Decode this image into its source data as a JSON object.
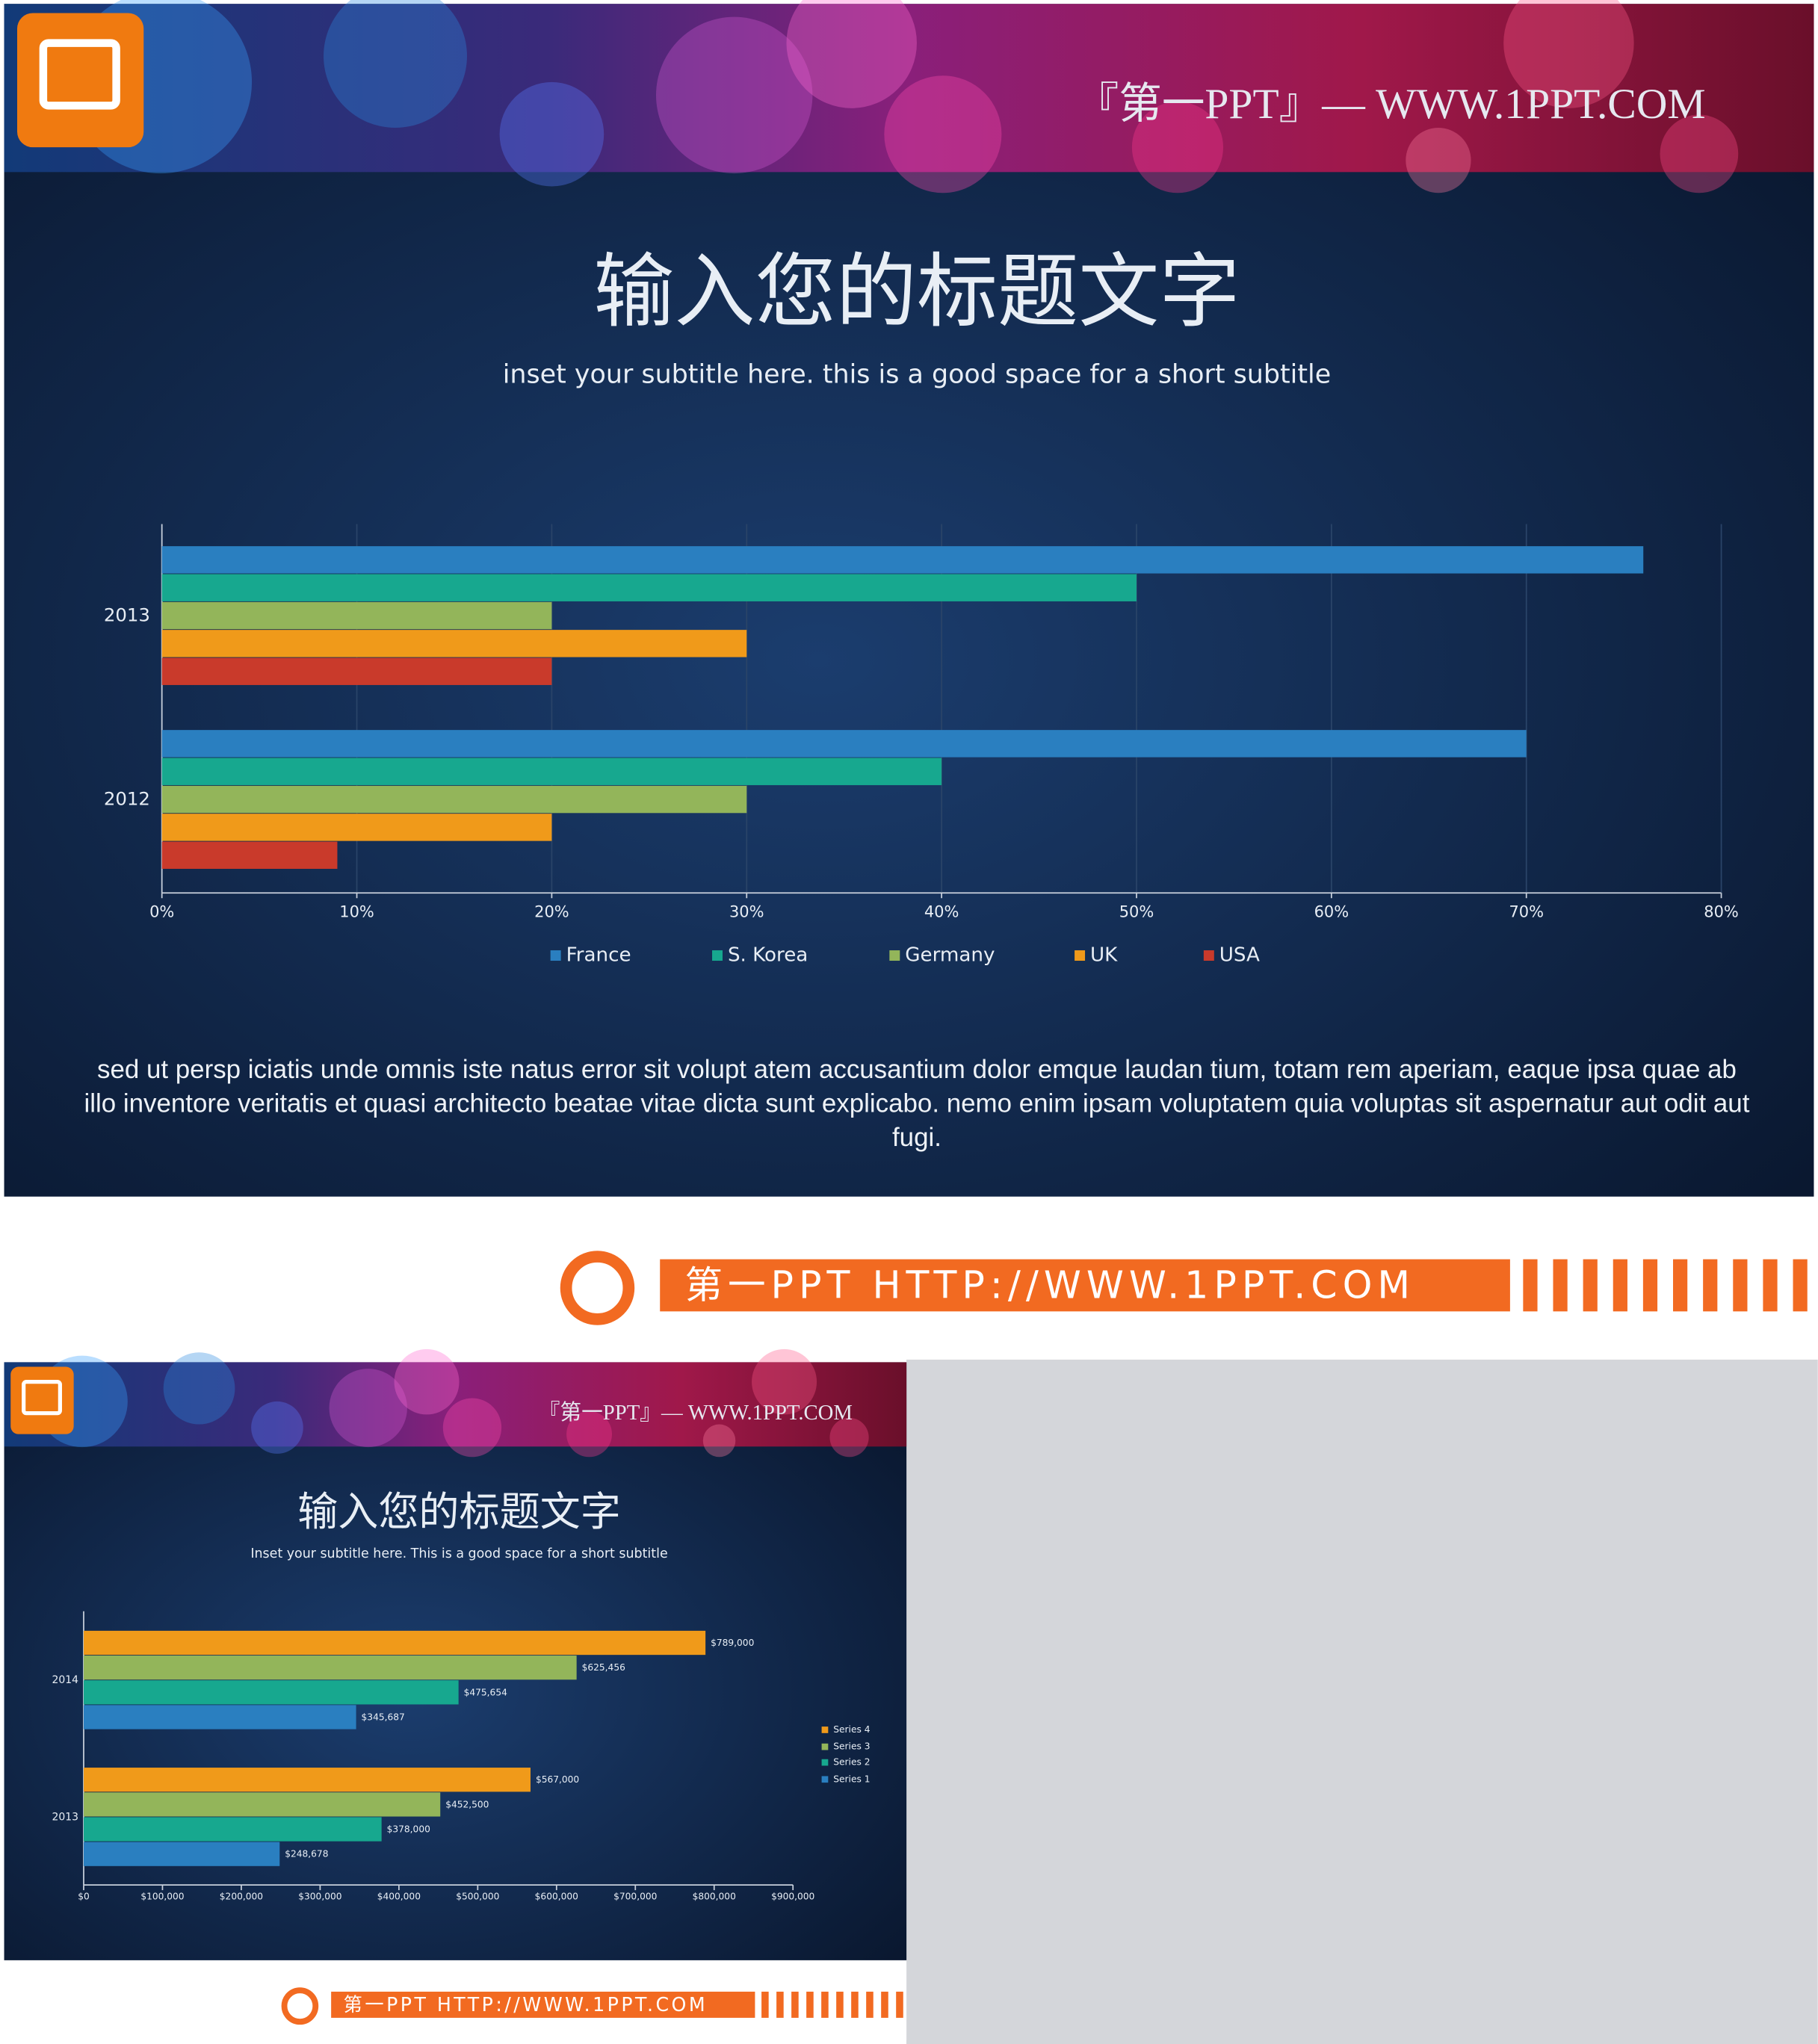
{
  "chart_data": [
    {
      "type": "bar",
      "orientation": "horizontal",
      "title": "输入您的标题文字",
      "subtitle": "inset your subtitle here. this is a good space for a short subtitle",
      "categories": [
        "2013",
        "2012"
      ],
      "series": [
        {
          "name": "France",
          "color": "#2a7fc0",
          "values": [
            76,
            70
          ]
        },
        {
          "name": "S. Korea",
          "color": "#17a88f",
          "values": [
            50,
            40
          ]
        },
        {
          "name": "Germany",
          "color": "#93b55a",
          "values": [
            20,
            30
          ]
        },
        {
          "name": "UK",
          "color": "#f09a1a",
          "values": [
            30,
            20
          ]
        },
        {
          "name": "USA",
          "color": "#c93a2b",
          "values": [
            20,
            9
          ]
        }
      ],
      "xlim": [
        0,
        80
      ],
      "xticks": [
        {
          "value": 0,
          "label": "0%"
        },
        {
          "value": 10,
          "label": "10%"
        },
        {
          "value": 20,
          "label": "20%"
        },
        {
          "value": 30,
          "label": "30%"
        },
        {
          "value": 40,
          "label": "40%"
        },
        {
          "value": 50,
          "label": "50%"
        },
        {
          "value": 60,
          "label": "60%"
        },
        {
          "value": 70,
          "label": "70%"
        },
        {
          "value": 80,
          "label": "80%"
        }
      ],
      "grid": true,
      "legend": "bottom",
      "annotation": "sed ut persp iciatis unde omnis iste natus error sit volupt atem accusantium dolor emque laudan tium, totam rem aperiam, eaque ipsa quae ab illo inventore veritatis et quasi architecto beatae vitae dicta sunt explicabo. nemo enim ipsam voluptatem quia voluptas sit aspernatur aut odit aut fugi."
    },
    {
      "type": "bar",
      "orientation": "horizontal",
      "title": "输入您的标题文字",
      "subtitle": "Inset your subtitle here. This is a good space for a short subtitle",
      "categories": [
        "2014",
        "2013"
      ],
      "series": [
        {
          "name": "Series 4",
          "color": "#f09a1a",
          "values": [
            789000,
            567000
          ],
          "value_labels": [
            "$789,000",
            "$567,000"
          ]
        },
        {
          "name": "Series 3",
          "color": "#93b55a",
          "values": [
            625456,
            452500
          ],
          "value_labels": [
            "$625,456",
            "$452,500"
          ]
        },
        {
          "name": "Series 2",
          "color": "#17a88f",
          "values": [
            475654,
            378000
          ],
          "value_labels": [
            "$475,654",
            "$378,000"
          ]
        },
        {
          "name": "Series 1",
          "color": "#2a7fc0",
          "values": [
            345687,
            248678
          ],
          "value_labels": [
            "$345,687",
            "$248,678"
          ]
        }
      ],
      "xlim": [
        0,
        900000
      ],
      "xticks": [
        {
          "value": 0,
          "label": "$0"
        },
        {
          "value": 100000,
          "label": "$100,000"
        },
        {
          "value": 200000,
          "label": "$200,000"
        },
        {
          "value": 300000,
          "label": "$300,000"
        },
        {
          "value": 400000,
          "label": "$400,000"
        },
        {
          "value": 500000,
          "label": "$500,000"
        },
        {
          "value": 600000,
          "label": "$600,000"
        },
        {
          "value": 700000,
          "label": "$700,000"
        },
        {
          "value": 800000,
          "label": "$800,000"
        },
        {
          "value": 900000,
          "label": "$900,000"
        }
      ],
      "grid": false,
      "legend": "right"
    }
  ],
  "slides": [
    {
      "banner": "『第一PPT』— WWW.1PPT.COM",
      "footer": "第一PPT HTTP://WWW.1PPT.COM"
    },
    {
      "banner": "『第一PPT』— WWW.1PPT.COM",
      "footer": "第一PPT HTTP://WWW.1PPT.COM"
    }
  ]
}
